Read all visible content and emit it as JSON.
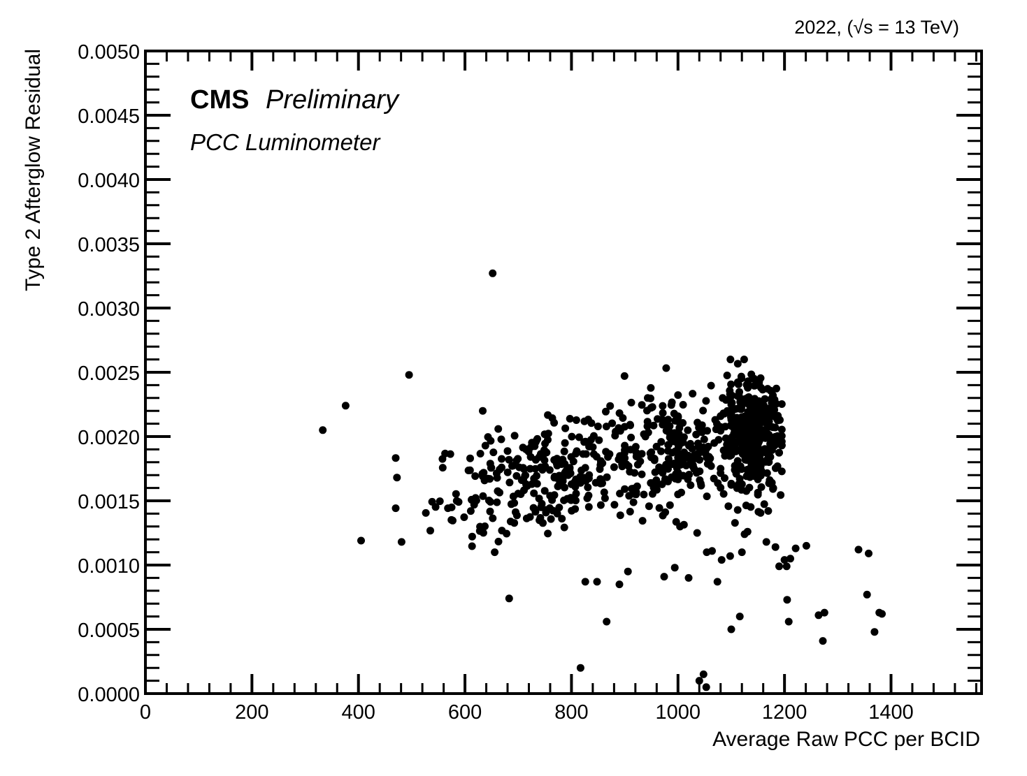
{
  "chart_data": {
    "type": "scatter",
    "top_label": "2022,  (√s = 13 TeV)",
    "experiment": "CMS",
    "status": "Preliminary",
    "detector": "PCC Luminometer",
    "xlabel": "Average Raw PCC per BCID",
    "ylabel": "Type 2 Afterglow Residual",
    "xlim": [
      0,
      1570
    ],
    "ylim": [
      0,
      0.005
    ],
    "x_ticks": [
      0,
      200,
      400,
      600,
      800,
      1000,
      1200,
      1400
    ],
    "y_ticks": [
      0.0,
      0.0005,
      0.001,
      0.0015,
      0.002,
      0.0025,
      0.003,
      0.0035,
      0.004,
      0.0045,
      0.005
    ],
    "x_tick_labels": [
      "0",
      "200",
      "400",
      "600",
      "800",
      "1000",
      "1200",
      "1400"
    ],
    "y_tick_labels": [
      "0.0000",
      "0.0005",
      "0.0010",
      "0.0015",
      "0.0020",
      "0.0025",
      "0.0030",
      "0.0035",
      "0.0040",
      "0.0045",
      "0.0050"
    ],
    "grid": false,
    "marker_color": "#000000",
    "outlier_points": [
      [
        333,
        0.00205
      ],
      [
        376,
        0.00224
      ],
      [
        405,
        0.00119
      ],
      [
        481,
        0.00118
      ],
      [
        495,
        0.00248
      ],
      [
        652,
        0.00327
      ],
      [
        683,
        0.00074
      ],
      [
        817,
        0.0002
      ],
      [
        826,
        0.00087
      ],
      [
        848,
        0.00087
      ],
      [
        866,
        0.00056
      ],
      [
        890,
        0.00085
      ],
      [
        906,
        0.00095
      ],
      [
        974,
        0.00091
      ],
      [
        994,
        0.00098
      ],
      [
        1020,
        0.0009
      ],
      [
        1036,
        0.00125
      ],
      [
        1040,
        0.0001
      ],
      [
        1048,
        0.00015
      ],
      [
        1053,
        5e-05
      ],
      [
        1054,
        0.0011
      ],
      [
        1064,
        0.00111
      ],
      [
        1074,
        0.00087
      ],
      [
        1082,
        0.00104
      ],
      [
        1098,
        0.00107
      ],
      [
        1100,
        0.0005
      ],
      [
        1116,
        0.0006
      ],
      [
        1120,
        0.0011
      ],
      [
        1125,
        0.00124
      ],
      [
        1166,
        0.00118
      ],
      [
        1183,
        0.00114
      ],
      [
        1200,
        0.00104
      ],
      [
        1204,
        0.00099
      ],
      [
        1205,
        0.00073
      ],
      [
        1208,
        0.00056
      ],
      [
        1221,
        0.00113
      ],
      [
        1241,
        0.00115
      ],
      [
        1264,
        0.00061
      ],
      [
        1272,
        0.00041
      ],
      [
        1275,
        0.00063
      ],
      [
        1339,
        0.00112
      ],
      [
        1355,
        0.00077
      ],
      [
        1358,
        0.00109
      ],
      [
        1369,
        0.00048
      ],
      [
        1378,
        0.00063
      ],
      [
        1383,
        0.00062
      ],
      [
        1211,
        0.00105
      ],
      [
        1190,
        0.00099
      ]
    ],
    "clusters": [
      {
        "name": "",
        "n": 330,
        "x_center": 780,
        "x_spread": 120,
        "y_center": 0.00172,
        "y_slope_per_unit": 8e-07,
        "y_spread": 0.00022,
        "x_min": 470,
        "x_max": 1000
      },
      {
        "name": "",
        "n": 170,
        "x_center": 1000,
        "x_spread": 55,
        "y_center": 0.00188,
        "y_slope_per_unit": 0.0,
        "y_spread": 0.00022,
        "x_min": 900,
        "x_max": 1100
      },
      {
        "name": "",
        "n": 380,
        "x_center": 1140,
        "x_spread": 28,
        "y_center": 0.00199,
        "y_slope_per_unit": 0.0,
        "y_spread": 0.00022,
        "x_min": 1080,
        "x_max": 1195
      }
    ]
  }
}
